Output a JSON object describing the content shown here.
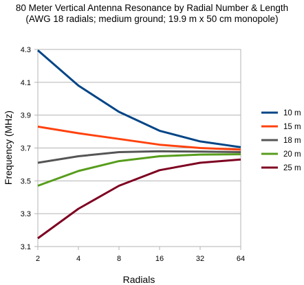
{
  "chart_data": {
    "type": "line",
    "title": "80 Meter Vertical Antenna Resonance by Radial Number & Length",
    "subtitle": "(AWG 18 radials; medium ground; 19.9 m x 50 cm monopole)",
    "xlabel": "Radials",
    "ylabel": "Frequency (MHz)",
    "categories": [
      "2",
      "4",
      "8",
      "16",
      "32",
      "64"
    ],
    "ylim": [
      3.1,
      4.3
    ],
    "yticks": [
      "3.1",
      "3.3",
      "3.5",
      "3.7",
      "3.9",
      "4.1",
      "4.3"
    ],
    "grid": "horizontal",
    "legend_position": "right",
    "series": [
      {
        "name": "10 m",
        "color": "#004586",
        "values": [
          4.295,
          4.08,
          3.92,
          3.805,
          3.74,
          3.705
        ]
      },
      {
        "name": "15 m",
        "color": "#ff420e",
        "values": [
          3.83,
          3.79,
          3.755,
          3.72,
          3.7,
          3.69
        ]
      },
      {
        "name": "18 m",
        "color": "#555555",
        "values": [
          3.61,
          3.65,
          3.675,
          3.68,
          3.678,
          3.675
        ]
      },
      {
        "name": "20 m",
        "color": "#579d1c",
        "values": [
          3.47,
          3.56,
          3.62,
          3.65,
          3.66,
          3.662
        ]
      },
      {
        "name": "25 m",
        "color": "#7e0021",
        "values": [
          3.15,
          3.33,
          3.47,
          3.565,
          3.61,
          3.63
        ]
      }
    ]
  }
}
